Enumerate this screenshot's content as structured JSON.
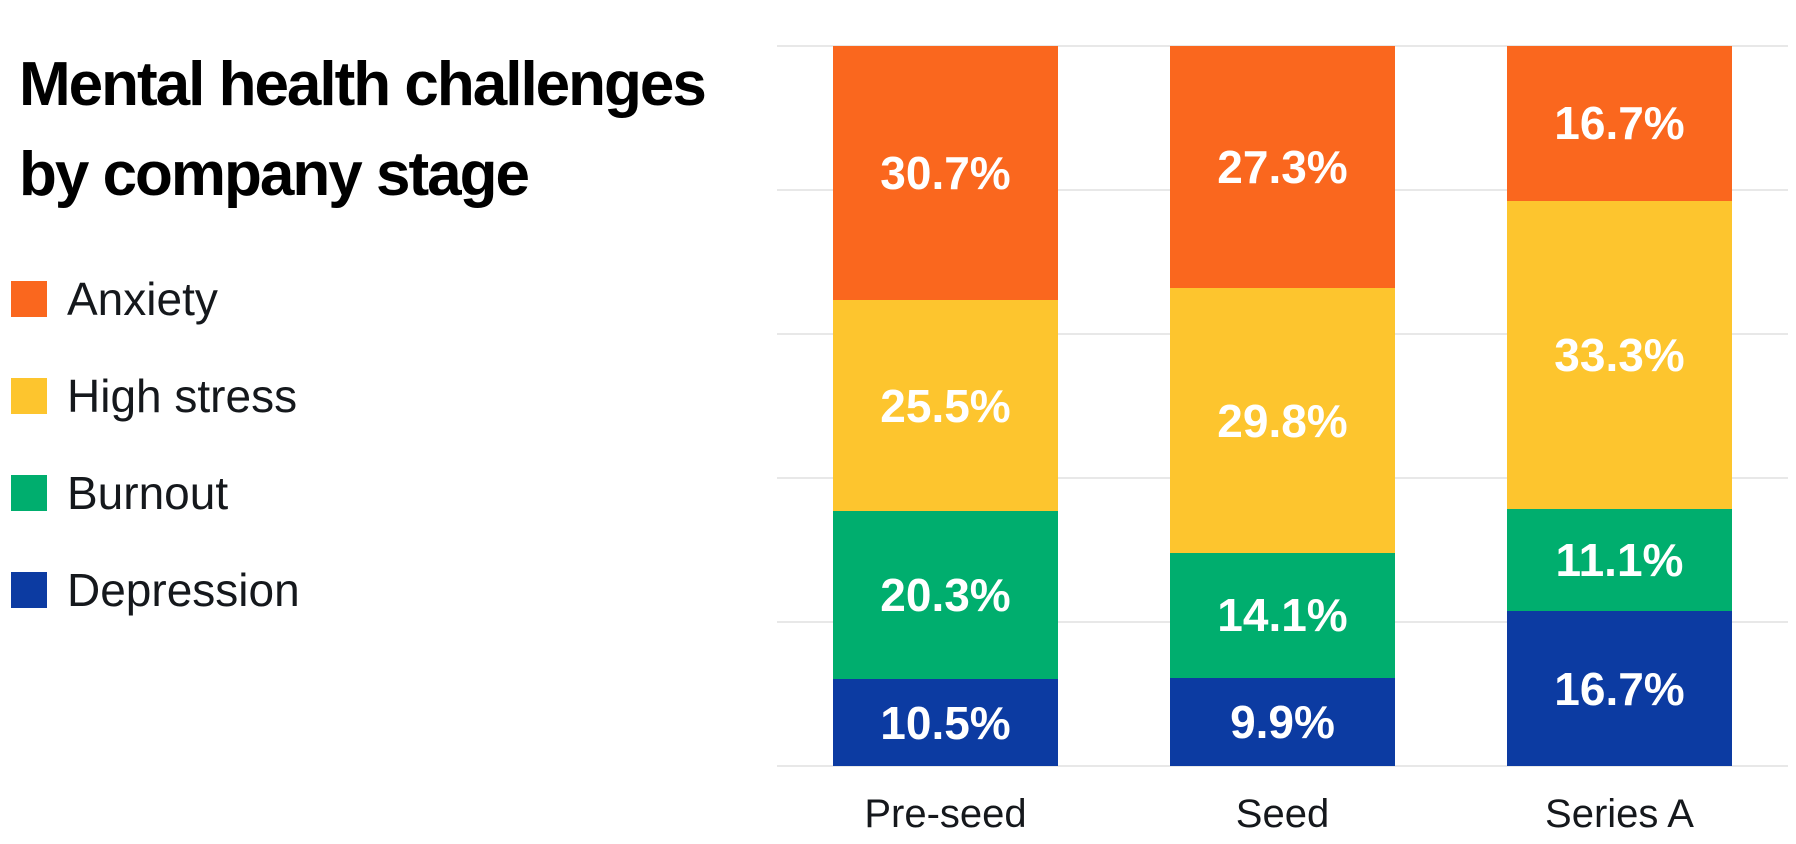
{
  "title": "Mental health challenges\nby company stage",
  "chart_data": {
    "type": "bar",
    "subtype": "stacked-normalized-100",
    "title": "Mental health challenges by company stage",
    "categories": [
      "Pre-seed",
      "Seed",
      "Series A"
    ],
    "series": [
      {
        "name": "Anxiety",
        "color": "#FA671E",
        "values": [
          30.7,
          27.3,
          16.7
        ]
      },
      {
        "name": "High stress",
        "color": "#FDC52E",
        "values": [
          25.5,
          29.8,
          33.3
        ]
      },
      {
        "name": "Burnout",
        "color": "#00AE6E",
        "values": [
          20.3,
          14.1,
          11.1
        ]
      },
      {
        "name": "Depression",
        "color": "#0C3BA2",
        "values": [
          10.5,
          9.9,
          16.7
        ]
      }
    ],
    "value_suffix": "%",
    "stack_order": "top-to-bottom",
    "bar_label_color": "#FFFFFF",
    "legend_position": "left",
    "grid": {
      "horizontal_lines": 6,
      "color": "#E8E8E8",
      "axis_range_percent": [
        0,
        100
      ],
      "ticks_visible": false
    }
  }
}
